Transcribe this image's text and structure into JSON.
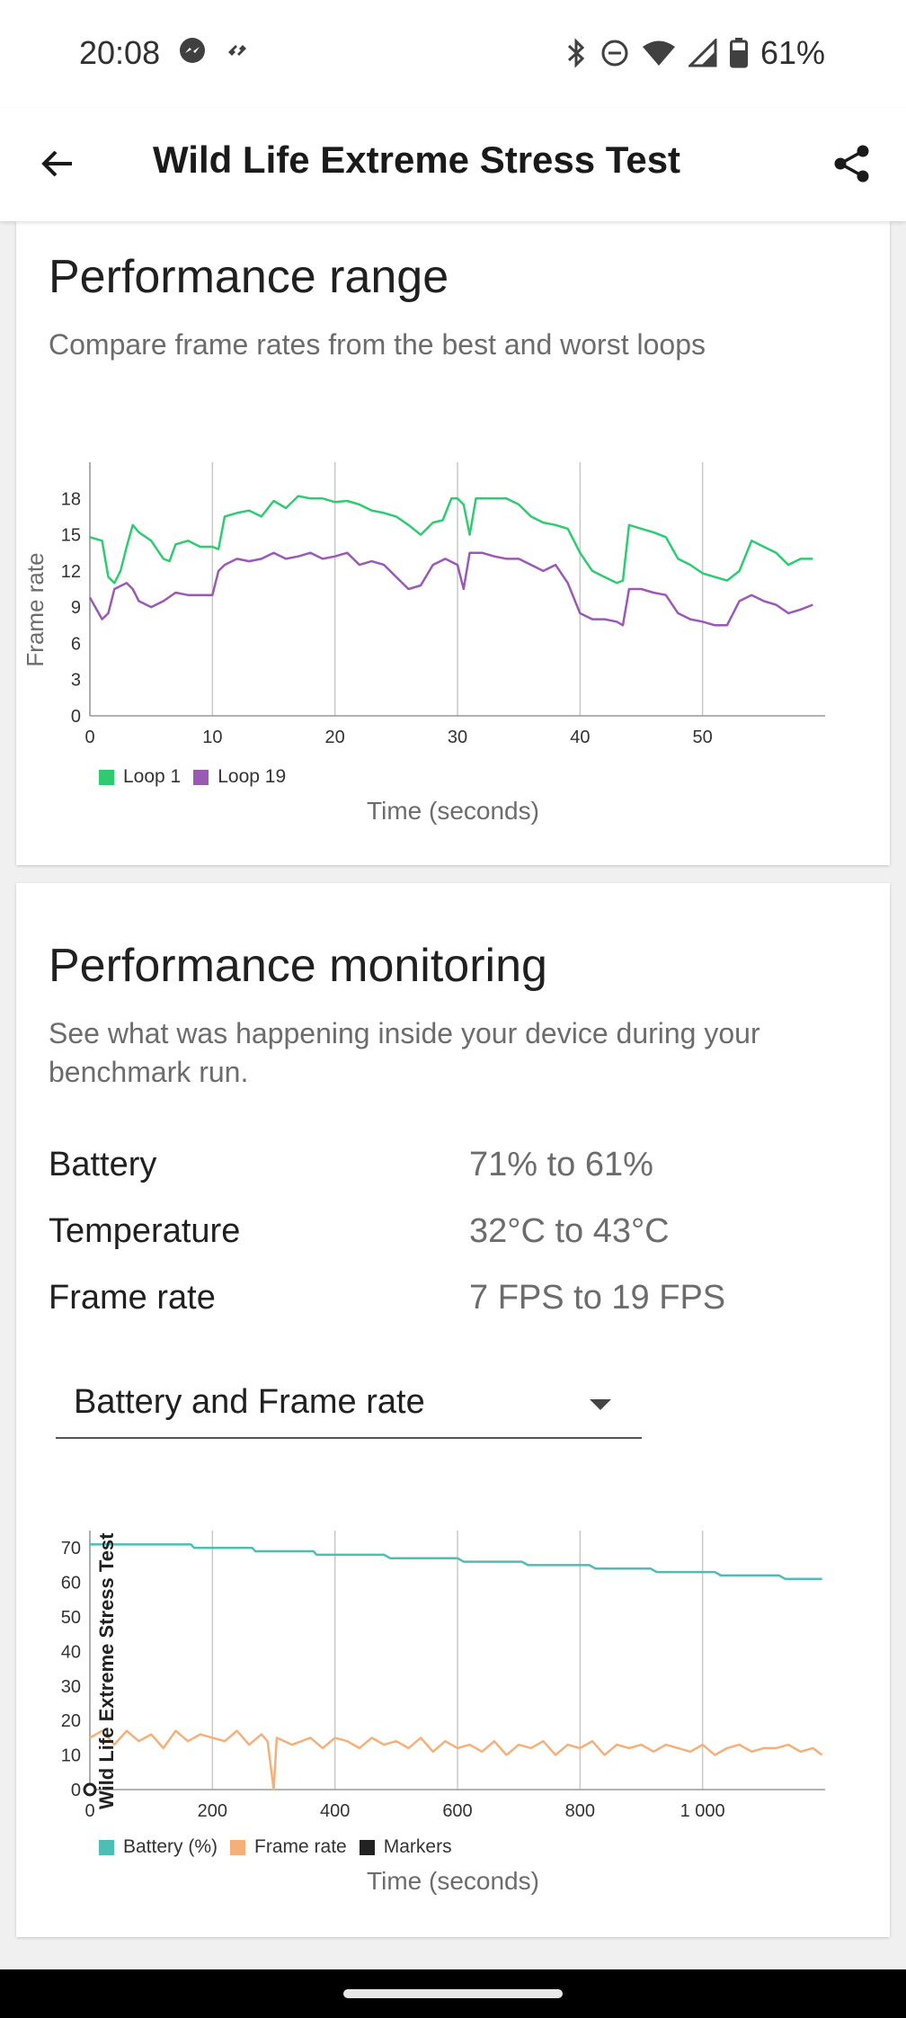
{
  "status_bar": {
    "time": "20:08",
    "left_icons": [
      "messenger-icon",
      "notification-swirl-icon"
    ],
    "right_icons": [
      "bluetooth-icon",
      "do-not-disturb-icon",
      "wifi-icon",
      "cellular-icon",
      "battery-icon"
    ],
    "battery_percent": "61%"
  },
  "app_bar": {
    "title": "Wild Life Extreme Stress Test",
    "back_icon": "arrow-back-icon",
    "share_icon": "share-icon"
  },
  "range_card": {
    "title": "Performance range",
    "subtitle": "Compare frame rates from the best and worst loops"
  },
  "monitor_card": {
    "title": "Performance monitoring",
    "subtitle": "See what was happening inside your device during your benchmark run.",
    "stats": [
      {
        "label": "Battery",
        "value": "71% to 61%"
      },
      {
        "label": "Temperature",
        "value": "32°C to 43°C"
      },
      {
        "label": "Frame rate",
        "value": "7 FPS to 19 FPS"
      }
    ],
    "dropdown": {
      "selected": "Battery and Frame rate"
    }
  },
  "chart_data": [
    {
      "type": "line",
      "title": "",
      "ylabel": "Frame rate",
      "xlabel": "Time (seconds)",
      "xlim": [
        0,
        60
      ],
      "ylim": [
        0,
        21
      ],
      "x_ticks": [
        "0",
        "10",
        "20",
        "30",
        "40",
        "50"
      ],
      "y_ticks": [
        "0",
        "3",
        "6",
        "9",
        "12",
        "15",
        "18"
      ],
      "grid": "vertical",
      "legend": "bottom-left",
      "series": [
        {
          "name": "Loop 1",
          "color": "#2ecc71",
          "points": [
            [
              0,
              14.8
            ],
            [
              1,
              14.5
            ],
            [
              1.5,
              11.5
            ],
            [
              2,
              11.0
            ],
            [
              2.5,
              12.0
            ],
            [
              3,
              14.0
            ],
            [
              3.5,
              15.8
            ],
            [
              4,
              15.2
            ],
            [
              5,
              14.5
            ],
            [
              6,
              13.0
            ],
            [
              6.5,
              12.8
            ],
            [
              7,
              14.2
            ],
            [
              8,
              14.5
            ],
            [
              9,
              14.0
            ],
            [
              10,
              14.0
            ],
            [
              10.5,
              13.8
            ],
            [
              11,
              16.5
            ],
            [
              12,
              16.8
            ],
            [
              13,
              17.0
            ],
            [
              14,
              16.5
            ],
            [
              15,
              17.8
            ],
            [
              16,
              17.2
            ],
            [
              17,
              18.2
            ],
            [
              18,
              18.0
            ],
            [
              19,
              18.0
            ],
            [
              20,
              17.7
            ],
            [
              21,
              17.8
            ],
            [
              22,
              17.5
            ],
            [
              23,
              17.0
            ],
            [
              24,
              16.8
            ],
            [
              25,
              16.5
            ],
            [
              26,
              15.8
            ],
            [
              27,
              15.0
            ],
            [
              28,
              16.0
            ],
            [
              28.8,
              16.2
            ],
            [
              29.5,
              18.0
            ],
            [
              30,
              18.0
            ],
            [
              30.5,
              17.5
            ],
            [
              31,
              15.0
            ],
            [
              31.5,
              18.0
            ],
            [
              33,
              18.0
            ],
            [
              34,
              18.0
            ],
            [
              35,
              17.5
            ],
            [
              36,
              16.5
            ],
            [
              37,
              16.0
            ],
            [
              38,
              15.8
            ],
            [
              39,
              15.5
            ],
            [
              40,
              13.5
            ],
            [
              41,
              12.0
            ],
            [
              42,
              11.5
            ],
            [
              43,
              11.0
            ],
            [
              43.5,
              11.2
            ],
            [
              44,
              15.8
            ],
            [
              45,
              15.5
            ],
            [
              46,
              15.2
            ],
            [
              47,
              14.8
            ],
            [
              48,
              13.0
            ],
            [
              49,
              12.5
            ],
            [
              50,
              11.8
            ],
            [
              51,
              11.5
            ],
            [
              52,
              11.2
            ],
            [
              53,
              12.0
            ],
            [
              54,
              14.5
            ],
            [
              55,
              14.0
            ],
            [
              56,
              13.5
            ],
            [
              57,
              12.5
            ],
            [
              58,
              13.0
            ],
            [
              59,
              13.0
            ]
          ]
        },
        {
          "name": "Loop 19",
          "color": "#9b59b6",
          "points": [
            [
              0,
              9.8
            ],
            [
              1,
              8.0
            ],
            [
              1.5,
              8.5
            ],
            [
              2,
              10.5
            ],
            [
              3,
              11.0
            ],
            [
              3.5,
              10.5
            ],
            [
              4,
              9.5
            ],
            [
              5,
              9.0
            ],
            [
              6,
              9.5
            ],
            [
              7,
              10.2
            ],
            [
              8,
              10.0
            ],
            [
              9,
              10.0
            ],
            [
              10,
              10.0
            ],
            [
              10.5,
              12.0
            ],
            [
              11,
              12.5
            ],
            [
              12,
              13.0
            ],
            [
              13,
              12.8
            ],
            [
              14,
              13.0
            ],
            [
              15,
              13.5
            ],
            [
              16,
              13.0
            ],
            [
              17,
              13.2
            ],
            [
              18,
              13.5
            ],
            [
              19,
              13.0
            ],
            [
              20,
              13.2
            ],
            [
              21,
              13.5
            ],
            [
              22,
              12.5
            ],
            [
              23,
              12.8
            ],
            [
              24,
              12.5
            ],
            [
              25,
              11.5
            ],
            [
              26,
              10.5
            ],
            [
              27,
              10.8
            ],
            [
              28,
              12.5
            ],
            [
              29,
              13.0
            ],
            [
              30,
              12.5
            ],
            [
              30.5,
              10.5
            ],
            [
              31,
              13.5
            ],
            [
              32,
              13.5
            ],
            [
              33,
              13.2
            ],
            [
              34,
              13.0
            ],
            [
              35,
              13.0
            ],
            [
              36,
              12.5
            ],
            [
              37,
              12.0
            ],
            [
              38,
              12.5
            ],
            [
              39,
              11.0
            ],
            [
              40,
              8.5
            ],
            [
              41,
              8.0
            ],
            [
              42,
              8.0
            ],
            [
              43,
              7.8
            ],
            [
              43.5,
              7.5
            ],
            [
              44,
              10.5
            ],
            [
              45,
              10.5
            ],
            [
              46,
              10.2
            ],
            [
              47,
              10.0
            ],
            [
              48,
              8.5
            ],
            [
              49,
              8.0
            ],
            [
              50,
              7.8
            ],
            [
              51,
              7.5
            ],
            [
              52,
              7.5
            ],
            [
              53,
              9.5
            ],
            [
              54,
              10.0
            ],
            [
              55,
              9.5
            ],
            [
              56,
              9.2
            ],
            [
              57,
              8.5
            ],
            [
              58,
              8.8
            ],
            [
              59,
              9.2
            ]
          ]
        }
      ]
    },
    {
      "type": "line",
      "title": "",
      "annotation": "Wild Life Extreme Stress Test",
      "xlabel": "Time (seconds)",
      "xlim": [
        0,
        1200
      ],
      "ylim": [
        0,
        75
      ],
      "x_ticks": [
        "0",
        "200",
        "400",
        "600",
        "800",
        "1 000"
      ],
      "y_ticks": [
        "0",
        "10",
        "20",
        "30",
        "40",
        "50",
        "60",
        "70"
      ],
      "grid": "vertical",
      "legend": "bottom-left",
      "series": [
        {
          "name": "Battery (%)",
          "color": "#4dbdb6",
          "points": [
            [
              0,
              71
            ],
            [
              165,
              71
            ],
            [
              170,
              70
            ],
            [
              265,
              70
            ],
            [
              270,
              69
            ],
            [
              365,
              69
            ],
            [
              370,
              68
            ],
            [
              480,
              68
            ],
            [
              490,
              67
            ],
            [
              600,
              67
            ],
            [
              610,
              66
            ],
            [
              705,
              66
            ],
            [
              715,
              65
            ],
            [
              815,
              65
            ],
            [
              825,
              64
            ],
            [
              915,
              64
            ],
            [
              925,
              63
            ],
            [
              1020,
              63
            ],
            [
              1030,
              62
            ],
            [
              1125,
              62
            ],
            [
              1135,
              61
            ],
            [
              1195,
              61
            ]
          ]
        },
        {
          "name": "Frame rate",
          "color": "#f5b07a",
          "points": [
            [
              0,
              15
            ],
            [
              20,
              17
            ],
            [
              40,
              13
            ],
            [
              60,
              17
            ],
            [
              80,
              14
            ],
            [
              100,
              16
            ],
            [
              120,
              12
            ],
            [
              140,
              17
            ],
            [
              160,
              14
            ],
            [
              180,
              16
            ],
            [
              200,
              15
            ],
            [
              220,
              14
            ],
            [
              240,
              17
            ],
            [
              260,
              13
            ],
            [
              280,
              16
            ],
            [
              290,
              14
            ],
            [
              300,
              0
            ],
            [
              305,
              15
            ],
            [
              330,
              13
            ],
            [
              360,
              15
            ],
            [
              380,
              12
            ],
            [
              400,
              15
            ],
            [
              420,
              14
            ],
            [
              440,
              12
            ],
            [
              460,
              15
            ],
            [
              480,
              13
            ],
            [
              500,
              14
            ],
            [
              520,
              12
            ],
            [
              540,
              15
            ],
            [
              560,
              11
            ],
            [
              580,
              14
            ],
            [
              600,
              12
            ],
            [
              620,
              13
            ],
            [
              640,
              11
            ],
            [
              660,
              14
            ],
            [
              680,
              10
            ],
            [
              700,
              13
            ],
            [
              720,
              12
            ],
            [
              740,
              14
            ],
            [
              760,
              10
            ],
            [
              780,
              13
            ],
            [
              800,
              12
            ],
            [
              820,
              14
            ],
            [
              840,
              10
            ],
            [
              860,
              13
            ],
            [
              880,
              12
            ],
            [
              900,
              13
            ],
            [
              920,
              11
            ],
            [
              940,
              13
            ],
            [
              960,
              12
            ],
            [
              980,
              11
            ],
            [
              1000,
              13
            ],
            [
              1020,
              10
            ],
            [
              1040,
              12
            ],
            [
              1060,
              13
            ],
            [
              1080,
              11
            ],
            [
              1100,
              12
            ],
            [
              1120,
              12
            ],
            [
              1140,
              13
            ],
            [
              1160,
              11
            ],
            [
              1180,
              12
            ],
            [
              1195,
              10
            ]
          ]
        },
        {
          "name": "Markers",
          "color": "#222222",
          "points": [
            [
              0,
              0
            ]
          ]
        }
      ]
    }
  ]
}
